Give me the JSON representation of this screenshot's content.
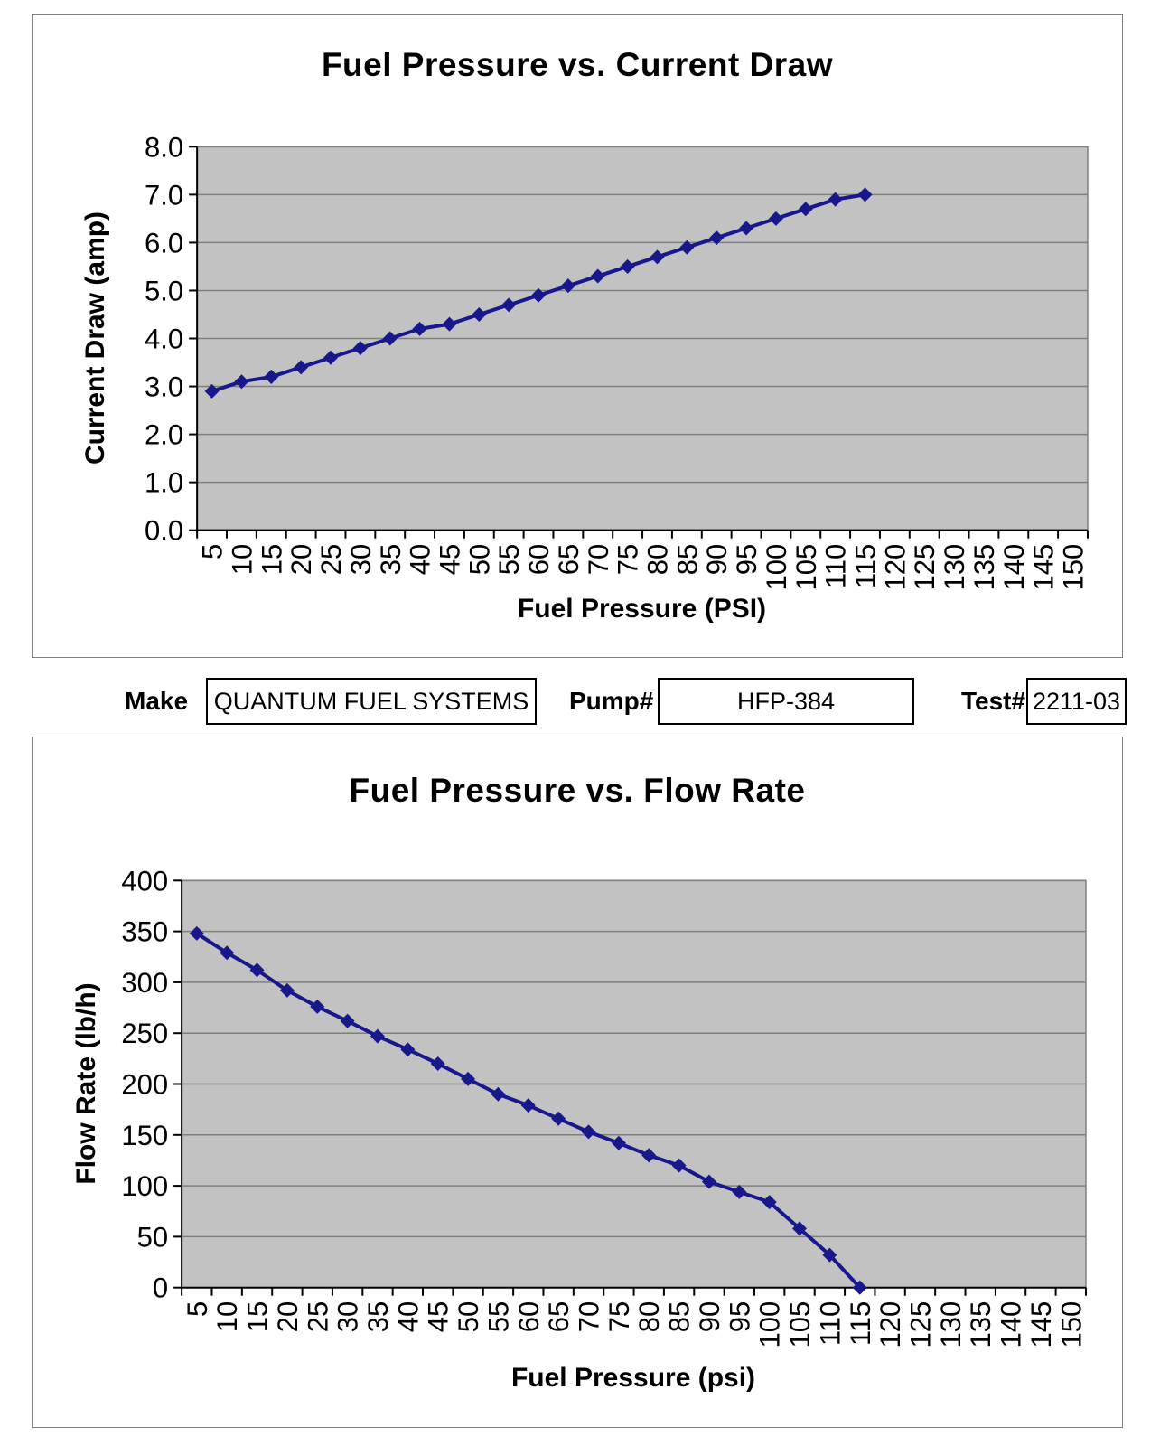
{
  "fields": {
    "make_label": "Make",
    "make_value": "QUANTUM FUEL SYSTEMS",
    "pump_label": "Pump#",
    "pump_value": "HFP-384",
    "test_label": "Test#",
    "test_value": "2211-03"
  },
  "colors": {
    "series": "#18188c",
    "plot_bg": "#c2c2c2",
    "gridline": "#7f7f7f",
    "axis": "#000000",
    "frame_border": "#808080"
  },
  "chart_data": [
    {
      "type": "line",
      "title": "Fuel Pressure vs. Current Draw",
      "xlabel": "Fuel Pressure (PSI)",
      "ylabel": "Current Draw (amp)",
      "x_tick_labels": [
        "5",
        "10",
        "15",
        "20",
        "25",
        "30",
        "35",
        "40",
        "45",
        "50",
        "55",
        "60",
        "65",
        "70",
        "75",
        "80",
        "85",
        "90",
        "95",
        "100",
        "105",
        "110",
        "115",
        "120",
        "125",
        "130",
        "135",
        "140",
        "145",
        "150"
      ],
      "x": [
        5,
        10,
        15,
        20,
        25,
        30,
        35,
        40,
        45,
        50,
        55,
        60,
        65,
        70,
        75,
        80,
        85,
        90,
        95,
        100,
        105,
        110,
        115
      ],
      "values": [
        2.9,
        3.1,
        3.2,
        3.4,
        3.6,
        3.8,
        4.0,
        4.2,
        4.3,
        4.5,
        4.7,
        4.9,
        5.1,
        5.3,
        5.5,
        5.7,
        5.9,
        6.1,
        6.3,
        6.5,
        6.7,
        6.9,
        7.0
      ],
      "ylim": [
        0,
        8
      ],
      "y_tick_labels": [
        "0.0",
        "1.0",
        "2.0",
        "3.0",
        "4.0",
        "5.0",
        "6.0",
        "7.0",
        "8.0"
      ],
      "grid": true,
      "legend": "none",
      "marker": "diamond"
    },
    {
      "type": "line",
      "title": "Fuel Pressure vs. Flow Rate",
      "xlabel": "Fuel Pressure (psi)",
      "ylabel": "Flow Rate (lb/h)",
      "x_tick_labels": [
        "5",
        "10",
        "15",
        "20",
        "25",
        "30",
        "35",
        "40",
        "45",
        "50",
        "55",
        "60",
        "65",
        "70",
        "75",
        "80",
        "85",
        "90",
        "95",
        "100",
        "105",
        "110",
        "115",
        "120",
        "125",
        "130",
        "135",
        "140",
        "145",
        "150"
      ],
      "x": [
        5,
        10,
        15,
        20,
        25,
        30,
        35,
        40,
        45,
        50,
        55,
        60,
        65,
        70,
        75,
        80,
        85,
        90,
        95,
        100,
        105,
        110,
        115
      ],
      "values": [
        348,
        329,
        312,
        292,
        276,
        262,
        247,
        234,
        220,
        205,
        190,
        179,
        166,
        153,
        142,
        130,
        120,
        104,
        94,
        84,
        58,
        32,
        0
      ],
      "ylim": [
        0,
        400
      ],
      "y_tick_labels": [
        "0",
        "50",
        "100",
        "150",
        "200",
        "250",
        "300",
        "350",
        "400"
      ],
      "grid": true,
      "legend": "none",
      "marker": "diamond"
    }
  ]
}
